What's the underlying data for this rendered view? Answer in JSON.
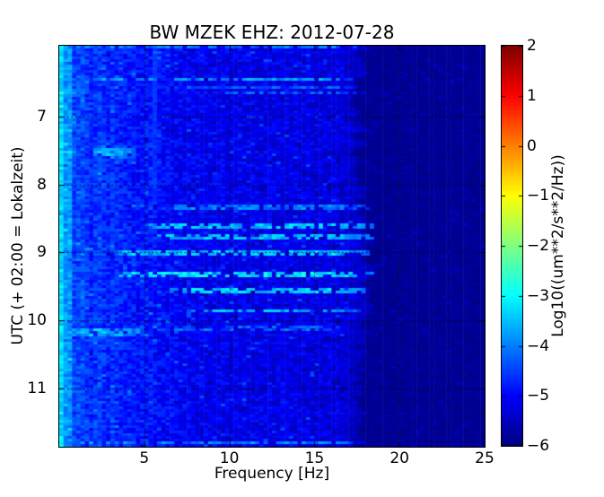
{
  "figure": {
    "title": "BW MZEK EHZ: 2012-07-28",
    "xlabel": "Frequency [Hz]",
    "ylabel": "UTC (+ 02:00 = Lokalzeit)",
    "colorbar_label": "Log10((um**2/s**2/Hz))"
  },
  "colors": {
    "background": "#ffffff",
    "axes_text": "#000000",
    "spine": "#000000",
    "grid": "#000000",
    "offscale_navy": "#000080"
  },
  "chart_data": {
    "type": "heatmap",
    "subtype": "seismic-spectrogram",
    "title": "BW MZEK EHZ: 2012-07-28",
    "xlabel": "Frequency [Hz]",
    "ylabel": "UTC (+ 02:00 = Lokalzeit)",
    "x_unit": "Hz",
    "y_unit": "hour of day (UTC)",
    "xlim": [
      0,
      25
    ],
    "ylim": [
      5.96,
      11.86
    ],
    "xticks": [
      {
        "value": 5,
        "label": "5"
      },
      {
        "value": 10,
        "label": "10"
      },
      {
        "value": 15,
        "label": "15"
      },
      {
        "value": 20,
        "label": "20"
      },
      {
        "value": 25,
        "label": "25"
      }
    ],
    "yticks": [
      {
        "value": 7,
        "label": "7"
      },
      {
        "value": 8,
        "label": "8"
      },
      {
        "value": 9,
        "label": "9"
      },
      {
        "value": 10,
        "label": "10"
      },
      {
        "value": 11,
        "label": "11"
      }
    ],
    "grid": true,
    "grid_style": "dotted-black",
    "colormap": "jet",
    "colorbar": {
      "label": "Log10((um**2/s**2/Hz))",
      "vmin": -6,
      "vmax": 2,
      "ticks": [
        {
          "value": 2,
          "label": "2"
        },
        {
          "value": 1,
          "label": "1"
        },
        {
          "value": 0,
          "label": "0"
        },
        {
          "value": -1,
          "label": "−1"
        },
        {
          "value": -2,
          "label": "−2"
        },
        {
          "value": -3,
          "label": "−3"
        },
        {
          "value": -4,
          "label": "−4"
        },
        {
          "value": -5,
          "label": "−5"
        },
        {
          "value": -6,
          "label": "−6"
        }
      ]
    },
    "field": {
      "description": "Blue noise field ~-5 log-power below ~17.6 Hz anti-alias cutoff; dark navy ~-5.85 above cutoff; brighter (cyan) at lowest frequencies.",
      "seed": 20120728,
      "cols": 100,
      "rows": 149,
      "base_level_at_0hz": -4.5,
      "base_slope_to_8hz": -0.5,
      "base_slope_per_hz": -0.015,
      "lowfreq_boost_below_0p8hz": 0.55,
      "lowfreq_boost_below_0p3hz": 0.6,
      "lowfreq_mottle_below_hz": 5.5,
      "lowfreq_mottle_amp": 0.22,
      "noise_amp": 0.36,
      "sparkle_prob": 0.05,
      "sparkle_boost": 0.45,
      "cutoff_hz_mean": 17.6,
      "cutoff_hz_jitter": 0.9,
      "cutoff_bulge_hz": 0.5,
      "cutoff_bulge_center_h": 9.3,
      "cutoff_bulge_sigma_h": 1.1,
      "beyond_cutoff_level": -5.84,
      "beyond_cutoff_noise": 0.11
    },
    "events": [
      {
        "kind": "streak",
        "t": 5.99,
        "f0": 0.0,
        "f1": 18.0,
        "level": -4.15,
        "halfwidth_h": 0.025
      },
      {
        "kind": "streak",
        "t": 6.45,
        "f0": 1.0,
        "f1": 17.3,
        "level": -3.85,
        "halfwidth_h": 0.032
      },
      {
        "kind": "streak",
        "t": 6.57,
        "f0": 6.5,
        "f1": 18.0,
        "level": -4.35,
        "halfwidth_h": 0.025
      },
      {
        "kind": "streak",
        "t": 6.64,
        "f0": 9.0,
        "f1": 18.1,
        "level": -4.4,
        "halfwidth_h": 0.025
      },
      {
        "kind": "blob",
        "t": 7.53,
        "f0": 1.9,
        "f1": 4.4,
        "level": -3.15,
        "halfwidth_h": 0.08
      },
      {
        "kind": "blob",
        "t": 7.64,
        "f0": 1.6,
        "f1": 3.4,
        "level": -4.0,
        "halfwidth_h": 0.05
      },
      {
        "kind": "streak",
        "t": 8.34,
        "f0": 6.0,
        "f1": 18.3,
        "level": -4.05,
        "halfwidth_h": 0.028
      },
      {
        "kind": "streak",
        "t": 8.62,
        "f0": 5.0,
        "f1": 18.5,
        "level": -3.5,
        "halfwidth_h": 0.032
      },
      {
        "kind": "streak",
        "t": 8.77,
        "f0": 5.5,
        "f1": 18.5,
        "level": -3.5,
        "halfwidth_h": 0.032
      },
      {
        "kind": "streak",
        "t": 9.0,
        "f0": 3.0,
        "f1": 18.3,
        "level": -3.45,
        "halfwidth_h": 0.034
      },
      {
        "kind": "streak",
        "t": 9.34,
        "f0": 3.5,
        "f1": 18.4,
        "level": -3.2,
        "halfwidth_h": 0.04
      },
      {
        "kind": "streak",
        "t": 9.57,
        "f0": 6.5,
        "f1": 18.1,
        "level": -3.4,
        "halfwidth_h": 0.034
      },
      {
        "kind": "streak",
        "t": 9.86,
        "f0": 7.5,
        "f1": 17.7,
        "level": -3.65,
        "halfwidth_h": 0.03
      },
      {
        "kind": "streak",
        "t": 10.12,
        "f0": 4.0,
        "f1": 17.0,
        "level": -4.3,
        "halfwidth_h": 0.025
      },
      {
        "kind": "streak",
        "t": 10.17,
        "f0": 0.3,
        "f1": 5.6,
        "level": -3.6,
        "halfwidth_h": 0.05
      },
      {
        "kind": "blob",
        "t": 10.28,
        "f0": 1.0,
        "f1": 4.2,
        "level": -4.15,
        "halfwidth_h": 0.05
      },
      {
        "kind": "blob",
        "t": 11.05,
        "f0": 2.3,
        "f1": 3.7,
        "level": -4.2,
        "halfwidth_h": 0.05
      },
      {
        "kind": "blob",
        "t": 11.36,
        "f0": 2.3,
        "f1": 3.9,
        "level": -4.25,
        "halfwidth_h": 0.05
      },
      {
        "kind": "streak",
        "t": 11.81,
        "f0": 0.0,
        "f1": 18.0,
        "level": -4.0,
        "halfwidth_h": 0.025
      },
      {
        "kind": "vline",
        "f": 5.55,
        "t0": 6.05,
        "t1": 8.3,
        "level": -4.6
      }
    ]
  }
}
